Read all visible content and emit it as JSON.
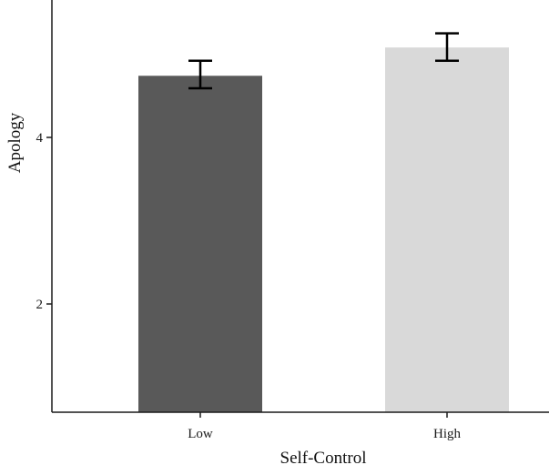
{
  "chart_data": {
    "type": "bar",
    "title": "",
    "xlabel": "Self-Control",
    "ylabel": "Apology",
    "categories": [
      "Low",
      "High"
    ],
    "values": [
      4.74,
      5.08
    ],
    "error_low": [
      4.59,
      4.92
    ],
    "error_high": [
      4.92,
      5.25
    ],
    "bar_colors": [
      "#595959",
      "#d9d9d9"
    ],
    "y_ticks": [
      "2",
      "4"
    ],
    "y_tick_values": [
      2,
      4
    ],
    "ylim": [
      0.7,
      5.65
    ],
    "grid": false,
    "legend": "none"
  }
}
